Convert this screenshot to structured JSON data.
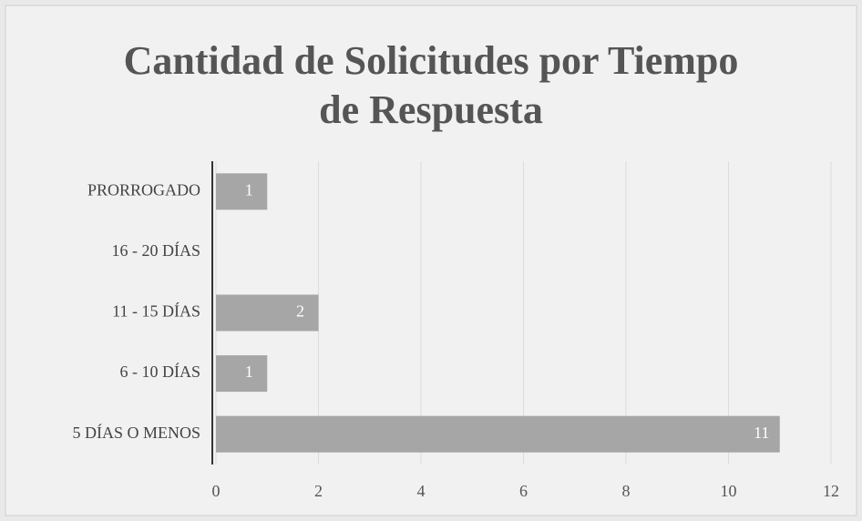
{
  "chart_data": {
    "type": "barh",
    "title": "Cantidad de Solicitudes por Tiempo de Respuesta",
    "categories": [
      "PRORROGADO",
      "16 - 20 DÍAS",
      "11 - 15 DÍAS",
      "6 - 10 DÍAS",
      "5 DÍAS O MENOS"
    ],
    "values": [
      1,
      0,
      2,
      1,
      11
    ],
    "color": "#a6a6a6",
    "xlim": [
      0,
      12
    ],
    "xticks": [
      0,
      2,
      4,
      6,
      8,
      10,
      12
    ],
    "grid": true
  }
}
